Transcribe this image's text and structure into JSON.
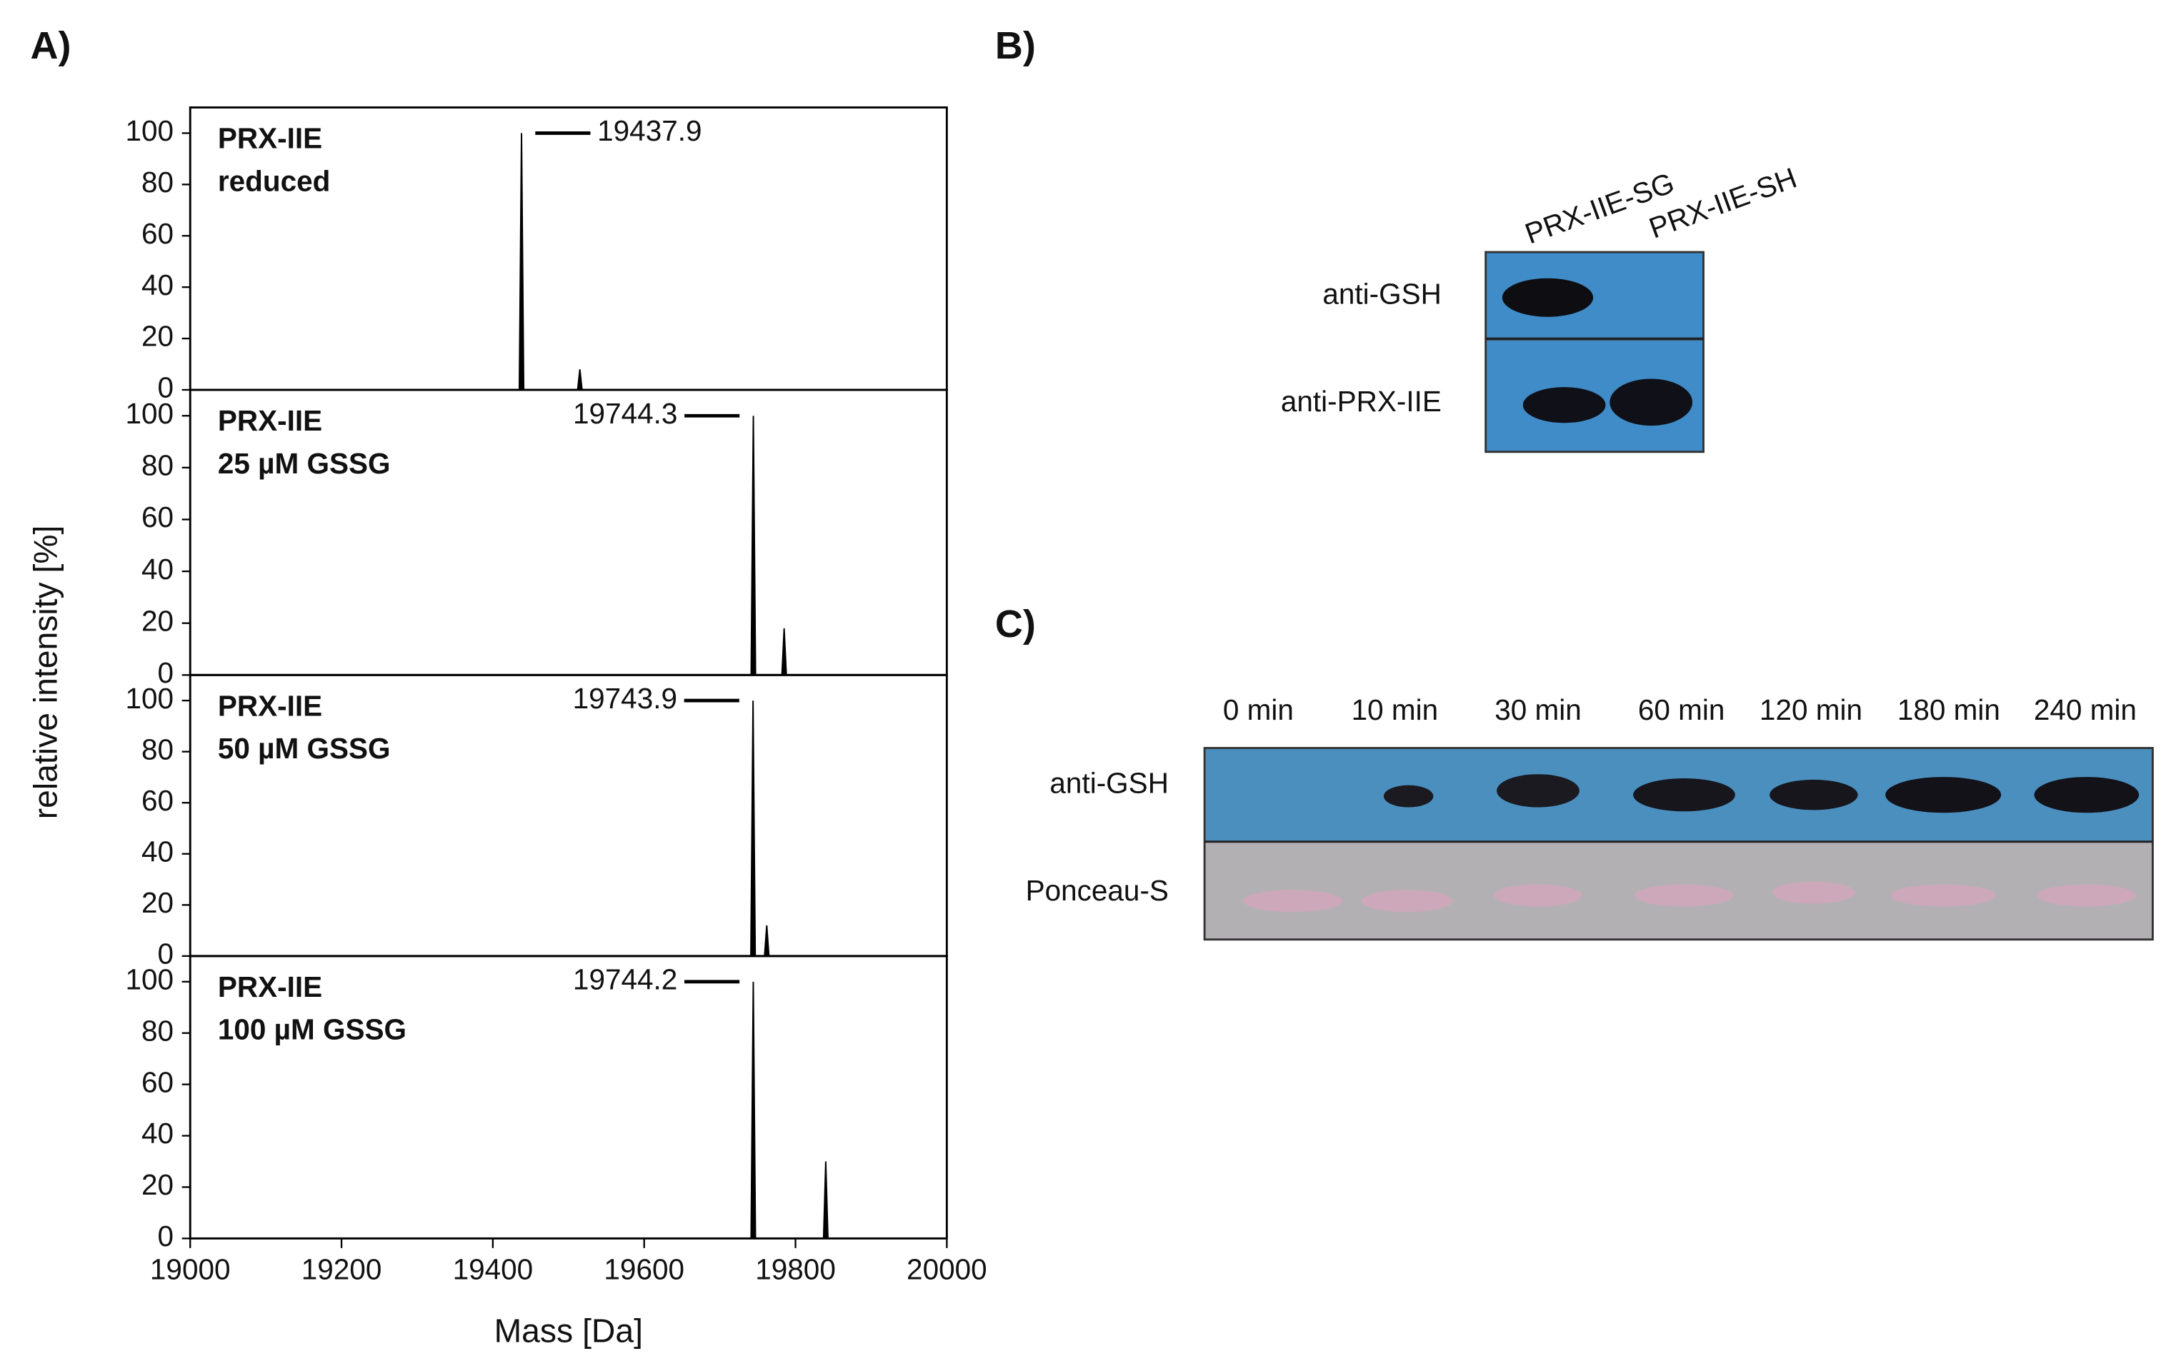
{
  "panel_labels": [
    "A)",
    "B)",
    "C)"
  ],
  "chart_data": [
    {
      "type": "stem",
      "annotations": [
        "PRX-IIE",
        "reduced"
      ],
      "x": [
        19437.9,
        19515
      ],
      "values": [
        100,
        8
      ],
      "xlim": [
        19000,
        20000
      ],
      "ylim": [
        0,
        110
      ],
      "yticks": [
        0,
        20,
        40,
        60,
        80,
        100
      ],
      "color": "#000000",
      "ylabel": "relative intensity [%]"
    },
    {
      "type": "stem",
      "annotations": [
        "PRX-IIE",
        "25 µM GSSG"
      ],
      "x": [
        19744.3,
        19785
      ],
      "values": [
        100,
        18
      ],
      "xlim": [
        19000,
        20000
      ],
      "ylim": [
        0,
        110
      ],
      "yticks": [
        0,
        20,
        40,
        60,
        80,
        100
      ],
      "color": "#000000"
    },
    {
      "type": "stem",
      "annotations": [
        "PRX-IIE",
        "50 µM GSSG"
      ],
      "x": [
        19743.9,
        19762
      ],
      "values": [
        100,
        12
      ],
      "xlim": [
        19000,
        20000
      ],
      "ylim": [
        0,
        110
      ],
      "yticks": [
        0,
        20,
        40,
        60,
        80,
        100
      ],
      "color": "#000000"
    },
    {
      "type": "stem",
      "annotations": [
        "PRX-IIE",
        "100 µM GSSG"
      ],
      "x": [
        19744.2,
        19840
      ],
      "values": [
        100,
        30
      ],
      "xlim": [
        19000,
        20000
      ],
      "ylim": [
        0,
        110
      ],
      "yticks": [
        0,
        20,
        40,
        60,
        80,
        100
      ],
      "color": "#000000",
      "xticks": [
        19000,
        19200,
        19400,
        19600,
        19800,
        20000
      ],
      "xlabel": "Mass [Da]"
    }
  ],
  "panel_b": {
    "lanes": [
      "PRX-IIE-SG",
      "PRX-IIE-SH"
    ],
    "rows": [
      "anti-GSH",
      "anti-PRX-IIE"
    ]
  },
  "panel_c": {
    "lanes": [
      "0 min",
      "10 min",
      "30 min",
      "60 min",
      "120 min",
      "180 min",
      "240 min"
    ],
    "rows": [
      "anti-GSH",
      "Ponceau-S"
    ]
  }
}
